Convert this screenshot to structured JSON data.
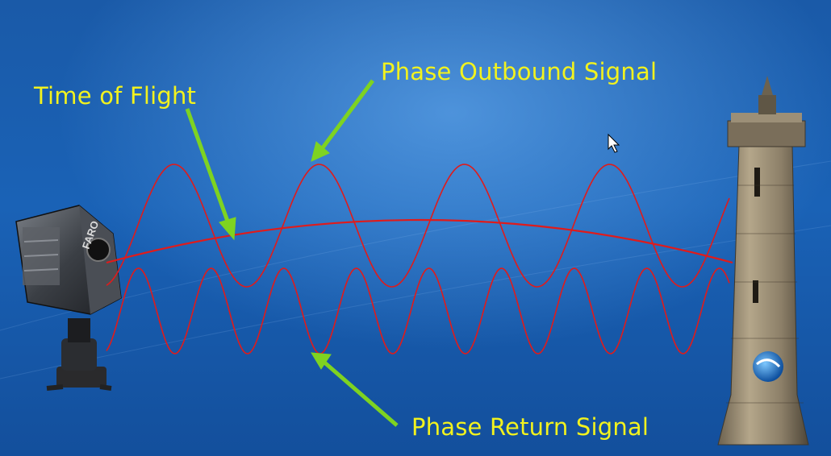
{
  "labels": {
    "time_of_flight": "Time of Flight",
    "phase_outbound": "Phase Outbound Signal",
    "phase_return": "Phase Return Signal",
    "scanner_brand": "FARO"
  },
  "colors": {
    "signal": "#e01b1b",
    "arrow": "#7ed321",
    "label": "#f2f21e"
  },
  "icons": {
    "scanner": "laser-scanner-icon",
    "tower": "stone-tower-icon",
    "cursor": "mouse-cursor-icon",
    "logo": "globe-logo-icon"
  }
}
